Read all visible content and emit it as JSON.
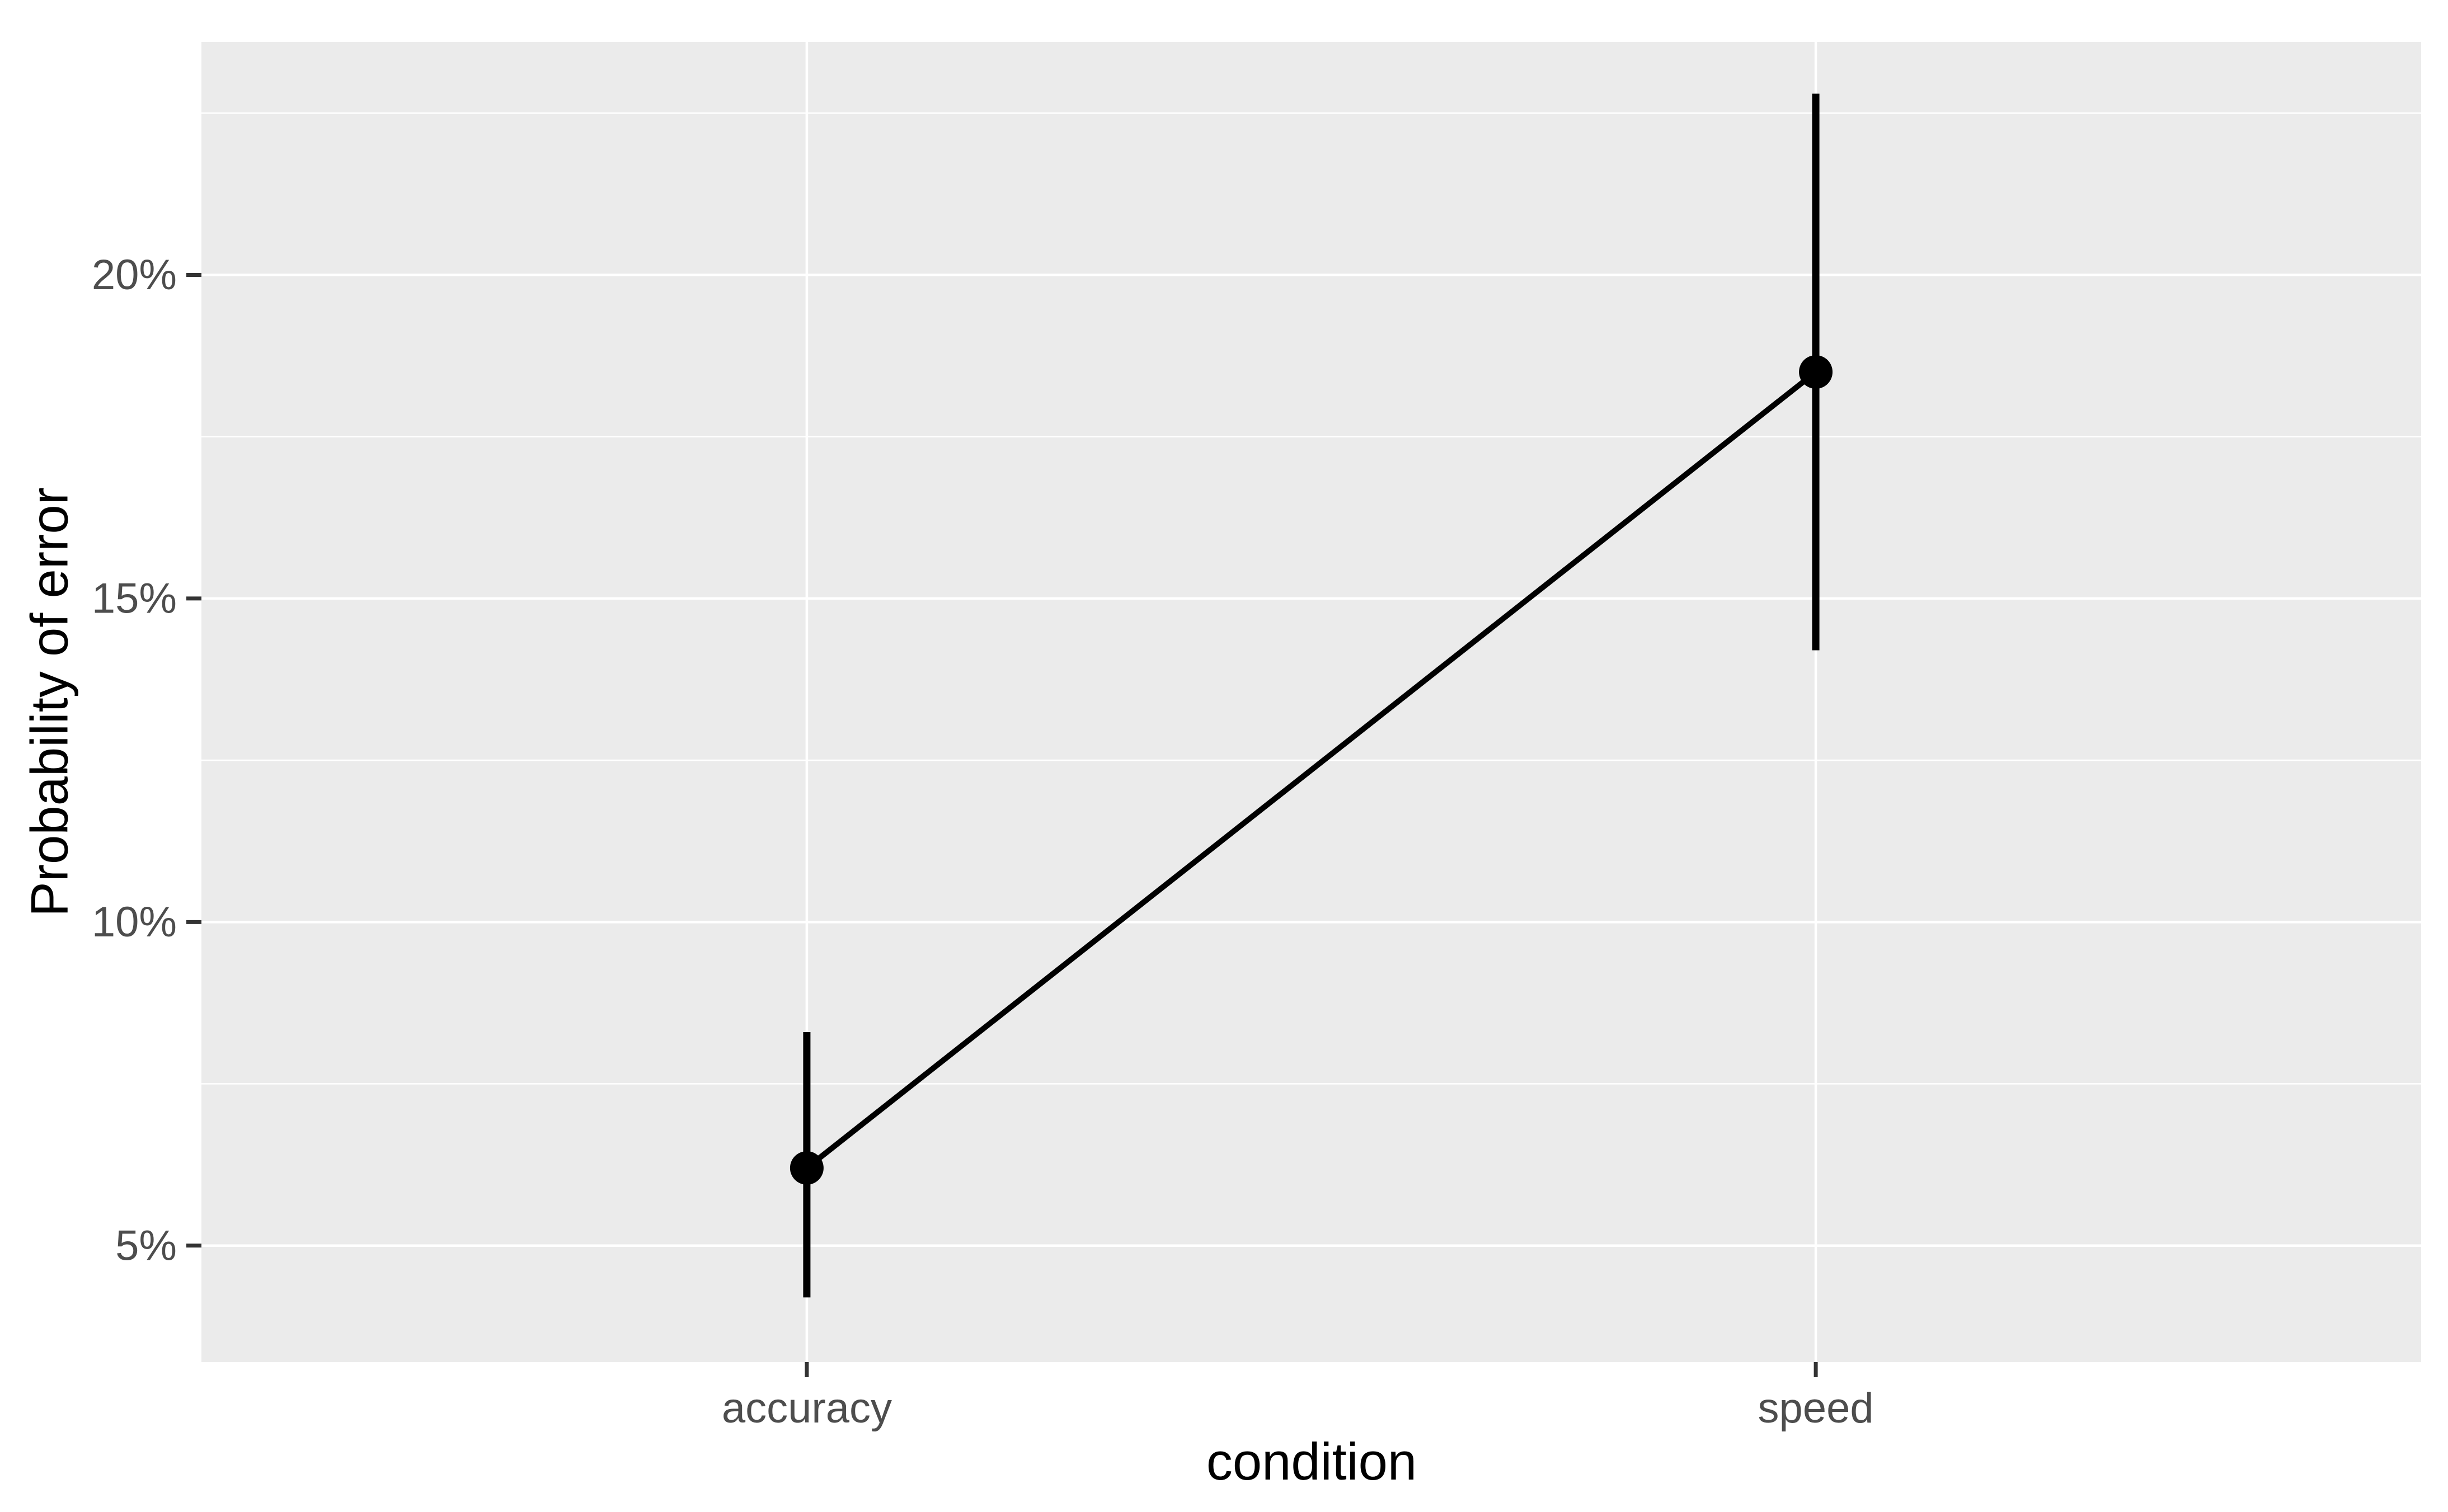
{
  "chart_data": {
    "type": "line",
    "subtype": "pointrange-with-line",
    "title": "",
    "xlabel": "condition",
    "ylabel": "Probability of error",
    "categories": [
      "accuracy",
      "speed"
    ],
    "values": [
      6.2,
      18.5
    ],
    "ci_lower": [
      4.2,
      14.2
    ],
    "ci_upper": [
      8.3,
      22.8
    ],
    "y_unit": "%",
    "y_ticks": {
      "values": [
        5,
        10,
        15,
        20
      ],
      "labels": [
        "5%",
        "10%",
        "15%",
        "20%"
      ]
    },
    "y_minor_ticks": [
      7.5,
      12.5,
      17.5,
      22.5
    ],
    "ylim": [
      3.2,
      23.6
    ],
    "grid": "major-and-minor",
    "legend": "none",
    "theme": {
      "panel_bg": "#EBEBEB",
      "grid_color": "#FFFFFF",
      "geom_color": "#000000",
      "axis_title_color": "#000000",
      "tick_label_color": "#4D4D4D",
      "tick_mark_color": "#333333",
      "background": "#FFFFFF"
    }
  }
}
